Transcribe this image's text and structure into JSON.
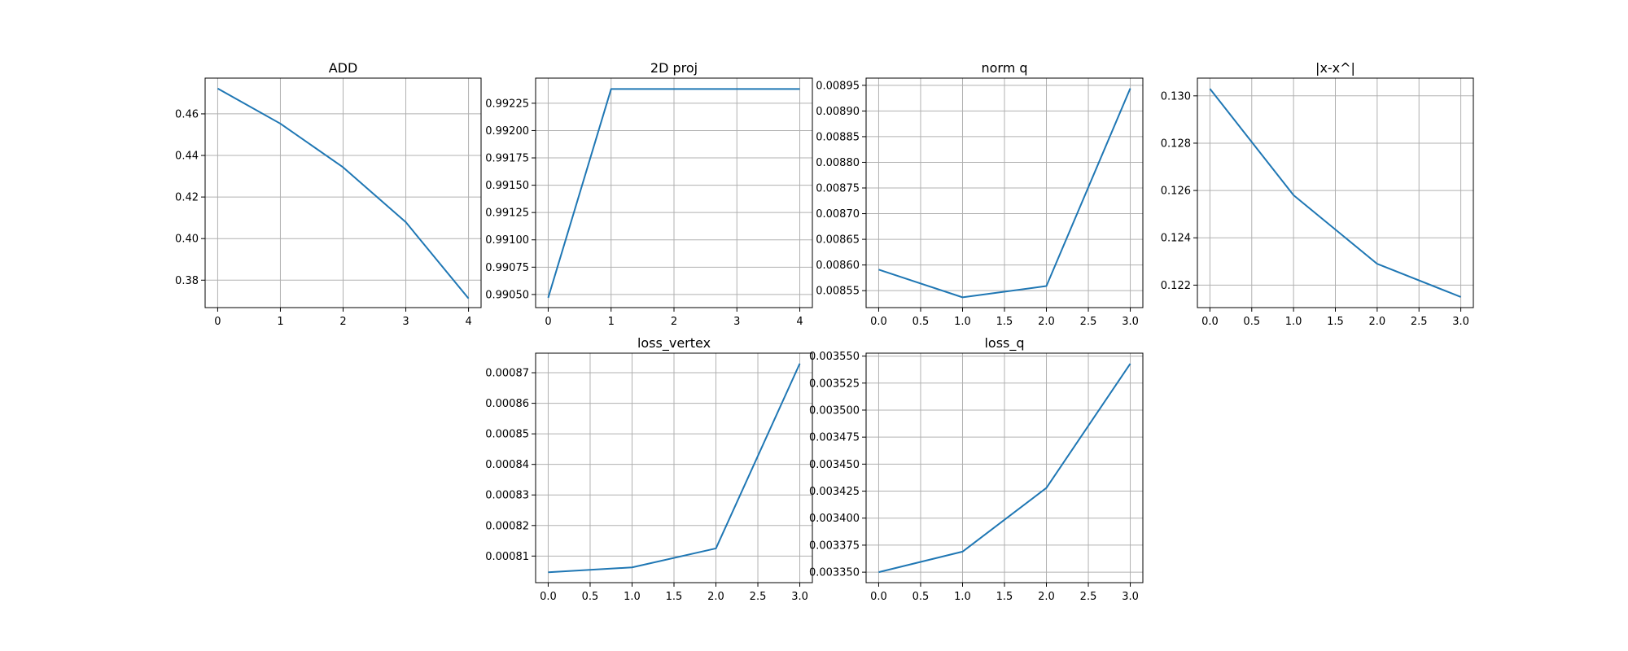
{
  "figure": {
    "background": "#ffffff",
    "line_color": "#1f77b4",
    "grid_color": "#b0b0b0"
  },
  "chart_data": [
    {
      "type": "line",
      "title": "ADD",
      "x": [
        0,
        1,
        2,
        3,
        4
      ],
      "values": [
        0.4722,
        0.4553,
        0.4343,
        0.4079,
        0.3712
      ],
      "xlim": [
        -0.2,
        4.2
      ],
      "ylim": [
        0.3668,
        0.4772
      ],
      "xticks": [
        0,
        1,
        2,
        3,
        4
      ],
      "xtick_labels": [
        "0",
        "1",
        "2",
        "3",
        "4"
      ],
      "yticks": [
        0.38,
        0.4,
        0.42,
        0.44,
        0.46
      ],
      "ytick_labels": [
        "0.38",
        "0.40",
        "0.42",
        "0.44",
        "0.46"
      ],
      "grid": true
    },
    {
      "type": "line",
      "title": "2D proj",
      "x": [
        0,
        1,
        2,
        3,
        4
      ],
      "values": [
        0.99047,
        0.99238,
        0.99238,
        0.99238,
        0.99238
      ],
      "xlim": [
        -0.2,
        4.2
      ],
      "ylim": [
        0.99038,
        0.99248
      ],
      "xticks": [
        0,
        1,
        2,
        3,
        4
      ],
      "xtick_labels": [
        "0",
        "1",
        "2",
        "3",
        "4"
      ],
      "yticks": [
        0.9905,
        0.99075,
        0.991,
        0.99125,
        0.9915,
        0.99175,
        0.992,
        0.99225
      ],
      "ytick_labels": [
        "0.99050",
        "0.99075",
        "0.99100",
        "0.99125",
        "0.99150",
        "0.99175",
        "0.99200",
        "0.99225"
      ],
      "grid": true
    },
    {
      "type": "line",
      "title": "norm q",
      "x": [
        0.0,
        1.0,
        2.0,
        3.0
      ],
      "values": [
        0.008591,
        0.008537,
        0.008559,
        0.008944
      ],
      "xlim": [
        -0.15,
        3.15
      ],
      "ylim": [
        0.008517,
        0.008964
      ],
      "xticks": [
        0.0,
        0.5,
        1.0,
        1.5,
        2.0,
        2.5,
        3.0
      ],
      "xtick_labels": [
        "0.0",
        "0.5",
        "1.0",
        "1.5",
        "2.0",
        "2.5",
        "3.0"
      ],
      "yticks": [
        0.00855,
        0.0086,
        0.00865,
        0.0087,
        0.00875,
        0.0088,
        0.00885,
        0.0089,
        0.00895
      ],
      "ytick_labels": [
        "0.00855",
        "0.00860",
        "0.00865",
        "0.00870",
        "0.00875",
        "0.00880",
        "0.00885",
        "0.00890",
        "0.00895"
      ],
      "grid": true
    },
    {
      "type": "line",
      "title": "|x-x^|",
      "x": [
        0.0,
        1.0,
        2.0,
        3.0
      ],
      "values": [
        0.1303,
        0.1258,
        0.1229,
        0.1215
      ],
      "xlim": [
        -0.15,
        3.15
      ],
      "ylim": [
        0.12105,
        0.13075
      ],
      "xticks": [
        0.0,
        0.5,
        1.0,
        1.5,
        2.0,
        2.5,
        3.0
      ],
      "xtick_labels": [
        "0.0",
        "0.5",
        "1.0",
        "1.5",
        "2.0",
        "2.5",
        "3.0"
      ],
      "yticks": [
        0.122,
        0.124,
        0.126,
        0.128,
        0.13
      ],
      "ytick_labels": [
        "0.122",
        "0.124",
        "0.126",
        "0.128",
        "0.130"
      ],
      "grid": true
    },
    {
      "type": "line",
      "title": "loss_vertex",
      "x": [
        0.0,
        1.0,
        2.0,
        3.0
      ],
      "values": [
        0.0008047,
        0.0008063,
        0.0008125,
        0.000873
      ],
      "xlim": [
        -0.15,
        3.15
      ],
      "ylim": [
        0.0008013,
        0.0008764
      ],
      "xticks": [
        0.0,
        0.5,
        1.0,
        1.5,
        2.0,
        2.5,
        3.0
      ],
      "xtick_labels": [
        "0.0",
        "0.5",
        "1.0",
        "1.5",
        "2.0",
        "2.5",
        "3.0"
      ],
      "yticks": [
        0.00081,
        0.00082,
        0.00083,
        0.00084,
        0.00085,
        0.00086,
        0.00087
      ],
      "ytick_labels": [
        "0.00081",
        "0.00082",
        "0.00083",
        "0.00084",
        "0.00085",
        "0.00086",
        "0.00087"
      ],
      "grid": true
    },
    {
      "type": "line",
      "title": "loss_q",
      "x": [
        0.0,
        1.0,
        2.0,
        3.0
      ],
      "values": [
        0.00335,
        0.003369,
        0.003428,
        0.003543
      ],
      "xlim": [
        -0.15,
        3.15
      ],
      "ylim": [
        0.0033403,
        0.0035527
      ],
      "xticks": [
        0.0,
        0.5,
        1.0,
        1.5,
        2.0,
        2.5,
        3.0
      ],
      "xtick_labels": [
        "0.0",
        "0.5",
        "1.0",
        "1.5",
        "2.0",
        "2.5",
        "3.0"
      ],
      "yticks": [
        0.00335,
        0.003375,
        0.0034,
        0.003425,
        0.00345,
        0.003475,
        0.0035,
        0.003525,
        0.00355
      ],
      "ytick_labels": [
        "0.003350",
        "0.003375",
        "0.003400",
        "0.003425",
        "0.003450",
        "0.003475",
        "0.003500",
        "0.003525",
        "0.003550"
      ],
      "grid": true
    }
  ]
}
